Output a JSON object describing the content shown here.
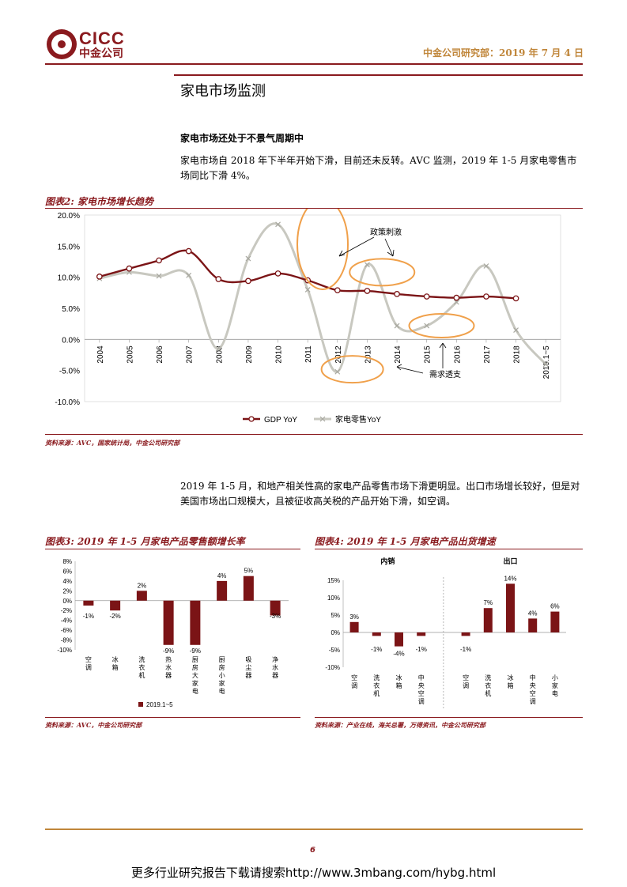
{
  "header": {
    "logo_en": "CICC",
    "logo_cn": "中金公司",
    "right_text": "中金公司研究部：2019 年 7 月 4 日",
    "colors": {
      "brand": "#8a1a1e",
      "gold": "#c0863a"
    }
  },
  "section_title": "家电市场监测",
  "subhead": "家电市场还处于不景气周期中",
  "para1": "家电市场自 2018 年下半年开始下滑，目前还未反转。AVC 监测，2019 年 1-5 月家电零售市场同比下滑 4%。",
  "fig2": {
    "title": "图表2: 家电市场增长趋势",
    "source": "资料来源：AVC，国家统计局，中金公司研究部",
    "annotations": {
      "policy": "政策刺激",
      "demand": "需求透支"
    }
  },
  "para2": "2019 年 1-5 月，和地产相关性高的家电产品零售市场下滑更明显。出口市场增长较好，但是对美国市场出口规模大，且被征收高关税的产品开始下滑，如空调。",
  "fig3": {
    "title": "图表3: 2019 年 1-5 月家电产品零售额增长率",
    "source": "资料来源：AVC，中金公司研究部"
  },
  "fig4": {
    "title": "图表4: 2019 年 1-5 月家电产品出货增速",
    "source": "资料来源：产业在线，海关总署，万得资讯，中金公司研究部",
    "group_labels": [
      "内销",
      "出口"
    ]
  },
  "chart_data": [
    {
      "type": "line",
      "title": "家电市场增长趋势",
      "x": [
        "2004",
        "2005",
        "2006",
        "2007",
        "2008",
        "2009",
        "2010",
        "2011",
        "2012",
        "2013",
        "2014",
        "2015",
        "2016",
        "2017",
        "2018",
        "2019.1~5"
      ],
      "ylim": [
        -10,
        20
      ],
      "yticks": [
        "20.0%",
        "15.0%",
        "10.0%",
        "5.0%",
        "0.0%",
        "-5.0%",
        "-10.0%"
      ],
      "series": [
        {
          "name": "GDP YoY",
          "color": "#7b1416",
          "values": [
            10.1,
            11.4,
            12.7,
            14.2,
            9.7,
            9.4,
            10.6,
            9.5,
            7.9,
            7.8,
            7.3,
            6.9,
            6.7,
            6.9,
            6.6,
            null
          ]
        },
        {
          "name": "家电零售YoY",
          "color": "#c8c8c0",
          "values": [
            9.8,
            10.8,
            10.2,
            10.3,
            -1.5,
            13.0,
            18.5,
            8.0,
            -5.2,
            12.0,
            2.2,
            2.2,
            6.0,
            11.8,
            1.5,
            -4.0
          ]
        }
      ]
    },
    {
      "type": "bar",
      "title": "2019 年 1-5 月家电产品零售额增长率",
      "categories": [
        "空调",
        "冰箱",
        "洗衣机",
        "热水器",
        "厨房大家电",
        "厨房小家电",
        "吸尘器",
        "净水器"
      ],
      "values": [
        -1,
        -2,
        2,
        -9,
        -9,
        4,
        5,
        -3
      ],
      "labels": [
        "-1%",
        "-2%",
        "2%",
        "-9%",
        "-9%",
        "4%",
        "5%",
        "-3%"
      ],
      "yticks": [
        "8%",
        "6%",
        "4%",
        "2%",
        "0%",
        "-2%",
        "-4%",
        "-6%",
        "-8%",
        "-10%"
      ],
      "ylim": [
        -10,
        8
      ],
      "legend": "2019.1~5",
      "color": "#7b1416"
    },
    {
      "type": "bar",
      "title": "2019 年 1-5 月家电产品出货增速",
      "categories": [
        "空调",
        "洗衣机",
        "冰箱",
        "中央空调",
        "空调",
        "洗衣机",
        "冰箱",
        "中央空调",
        "小家电"
      ],
      "values": [
        3,
        -1,
        -4,
        -1,
        -1,
        7,
        14,
        4,
        6
      ],
      "labels": [
        "3%",
        "-1%",
        "-4%",
        "-1%",
        "-1%",
        "7%",
        "14%",
        "4%",
        "6%"
      ],
      "yticks": [
        "15%",
        "10%",
        "5%",
        "0%",
        "-5%",
        "-10%"
      ],
      "ylim": [
        -10,
        15
      ],
      "color": "#7b1416"
    }
  ],
  "footer": {
    "page_number": "6",
    "promo": "更多行业研究报告下载请搜索http://www.3mbang.com/hybg.html"
  }
}
